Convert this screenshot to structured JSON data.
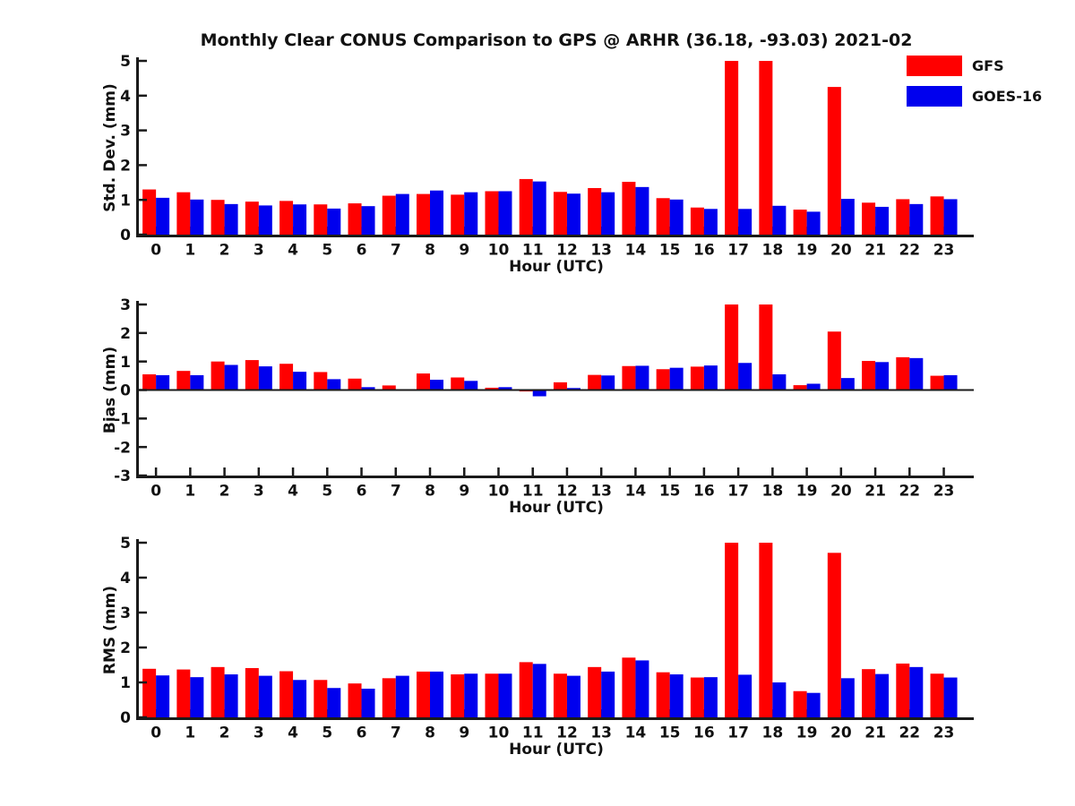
{
  "title": "Monthly Clear CONUS Comparison to GPS @ ARHR (36.18, -93.03) 2021-02",
  "legend": [
    {
      "label": "GFS",
      "color": "#ff0000"
    },
    {
      "label": "GOES-16",
      "color": "#0000ee"
    }
  ],
  "colors": {
    "gfs": "#ff0000",
    "goes16": "#0000ee",
    "axis": "#1a1a1a",
    "text": "#111111"
  },
  "chart_data": [
    {
      "type": "bar",
      "ylabel": "Std. Dev. (mm)",
      "xlabel": "Hour (UTC)",
      "ylim": [
        0,
        5
      ],
      "yticks": [
        0,
        1,
        2,
        3,
        4,
        5
      ],
      "categories": [
        "0",
        "1",
        "2",
        "3",
        "4",
        "5",
        "6",
        "7",
        "8",
        "9",
        "10",
        "11",
        "12",
        "13",
        "14",
        "15",
        "16",
        "17",
        "18",
        "19",
        "20",
        "21",
        "22",
        "23"
      ],
      "legend_position": "top-right",
      "grid": false,
      "series": [
        {
          "name": "GFS",
          "color": "#ff0000",
          "values": [
            1.3,
            1.22,
            1.0,
            0.95,
            0.97,
            0.87,
            0.9,
            1.12,
            1.17,
            1.15,
            1.25,
            1.6,
            1.23,
            1.34,
            1.52,
            1.05,
            0.78,
            5.0,
            5.0,
            0.72,
            4.25,
            0.92,
            1.02,
            1.1
          ]
        },
        {
          "name": "GOES-16",
          "color": "#0000ee",
          "values": [
            1.06,
            1.01,
            0.88,
            0.84,
            0.87,
            0.75,
            0.82,
            1.17,
            1.27,
            1.22,
            1.25,
            1.53,
            1.18,
            1.22,
            1.37,
            1.01,
            0.74,
            0.74,
            0.83,
            0.66,
            1.03,
            0.8,
            0.88,
            1.02
          ]
        }
      ]
    },
    {
      "type": "bar",
      "ylabel": "Bias (mm)",
      "xlabel": "Hour (UTC)",
      "ylim": [
        -3,
        3
      ],
      "yticks": [
        -3,
        -2,
        -1,
        0,
        1,
        2,
        3
      ],
      "categories": [
        "0",
        "1",
        "2",
        "3",
        "4",
        "5",
        "6",
        "7",
        "8",
        "9",
        "10",
        "11",
        "12",
        "13",
        "14",
        "15",
        "16",
        "17",
        "18",
        "19",
        "20",
        "21",
        "22",
        "23"
      ],
      "grid": false,
      "series": [
        {
          "name": "GFS",
          "color": "#ff0000",
          "values": [
            0.55,
            0.67,
            1.0,
            1.05,
            0.92,
            0.63,
            0.4,
            0.16,
            0.58,
            0.44,
            0.08,
            -0.05,
            0.27,
            0.53,
            0.84,
            0.73,
            0.82,
            3.0,
            3.0,
            0.17,
            2.05,
            1.02,
            1.15,
            0.5
          ]
        },
        {
          "name": "GOES-16",
          "color": "#0000ee",
          "values": [
            0.52,
            0.52,
            0.88,
            0.83,
            0.64,
            0.38,
            0.1,
            0.02,
            0.36,
            0.32,
            0.1,
            -0.22,
            0.07,
            0.51,
            0.85,
            0.78,
            0.86,
            0.95,
            0.55,
            0.22,
            0.42,
            0.98,
            1.12,
            0.52
          ]
        }
      ]
    },
    {
      "type": "bar",
      "ylabel": "RMS (mm)",
      "xlabel": "Hour (UTC)",
      "ylim": [
        0,
        5
      ],
      "yticks": [
        0,
        1,
        2,
        3,
        4,
        5
      ],
      "categories": [
        "0",
        "1",
        "2",
        "3",
        "4",
        "5",
        "6",
        "7",
        "8",
        "9",
        "10",
        "11",
        "12",
        "13",
        "14",
        "15",
        "16",
        "17",
        "18",
        "19",
        "20",
        "21",
        "22",
        "23"
      ],
      "grid": false,
      "series": [
        {
          "name": "GFS",
          "color": "#ff0000",
          "values": [
            1.39,
            1.37,
            1.44,
            1.41,
            1.32,
            1.07,
            0.97,
            1.12,
            1.31,
            1.23,
            1.25,
            1.58,
            1.25,
            1.44,
            1.71,
            1.29,
            1.14,
            5.0,
            5.0,
            0.75,
            4.71,
            1.38,
            1.54,
            1.25
          ]
        },
        {
          "name": "GOES-16",
          "color": "#0000ee",
          "values": [
            1.2,
            1.15,
            1.23,
            1.19,
            1.07,
            0.84,
            0.82,
            1.19,
            1.31,
            1.25,
            1.25,
            1.53,
            1.19,
            1.31,
            1.63,
            1.23,
            1.15,
            1.22,
            1.0,
            0.7,
            1.12,
            1.24,
            1.44,
            1.14
          ]
        }
      ]
    }
  ]
}
